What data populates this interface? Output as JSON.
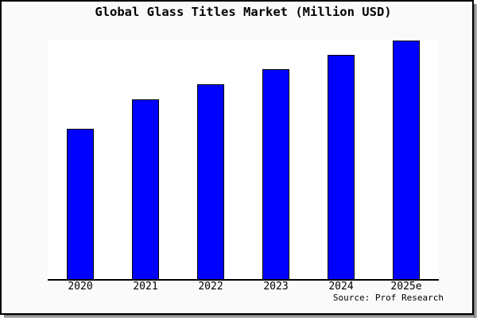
{
  "source": "Source: Prof Research",
  "chart_data": {
    "type": "bar",
    "title": "Global Glass Titles Market (Million USD)",
    "categories": [
      "2020",
      "2021",
      "2022",
      "2023",
      "2024",
      "2025e"
    ],
    "values": [
      63.0,
      75.3,
      81.7,
      88.0,
      94.0,
      100.0
    ],
    "value_scale": "relative, estimated from bar heights; no y-axis labels shown (2025e = 100)",
    "xlabel": "",
    "ylabel": "",
    "ylim": [
      0,
      100
    ],
    "grid": false,
    "legend": null,
    "bar_color": "#0000ff",
    "bar_border_color": "#000000",
    "axis_color": "#000000",
    "plot_bg": "#ffffff",
    "canvas_bg": "#fafafa"
  }
}
